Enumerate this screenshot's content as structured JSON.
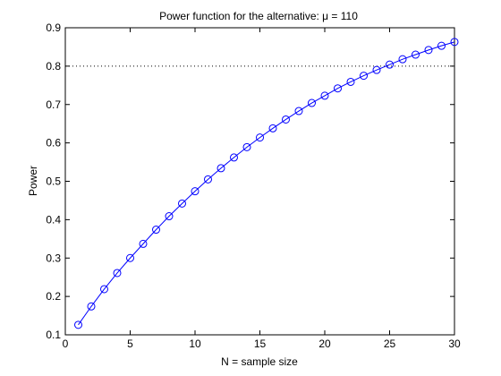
{
  "chart_data": {
    "type": "line",
    "title": "Power function for the alternative: μ = 110",
    "xlabel": "N = sample size",
    "ylabel": "Power",
    "xlim": [
      0,
      30
    ],
    "ylim": [
      0.1,
      0.9
    ],
    "xticks": [
      "0",
      "5",
      "10",
      "15",
      "20",
      "25",
      "30"
    ],
    "yticks": [
      "0.1",
      "0.2",
      "0.3",
      "0.4",
      "0.5",
      "0.6",
      "0.7",
      "0.8",
      "0.9"
    ],
    "grid": false,
    "reference_line": {
      "y": 0.8,
      "style": "dotted",
      "color": "#000000"
    },
    "series": [
      {
        "color": "#0000ff",
        "marker": "circle",
        "x": [
          1,
          2,
          3,
          4,
          5,
          6,
          7,
          8,
          9,
          10,
          11,
          12,
          13,
          14,
          15,
          16,
          17,
          18,
          19,
          20,
          21,
          22,
          23,
          24,
          25,
          26,
          27,
          28,
          29,
          30
        ],
        "values": [
          0.126,
          0.174,
          0.219,
          0.261,
          0.3,
          0.337,
          0.374,
          0.409,
          0.442,
          0.474,
          0.505,
          0.534,
          0.562,
          0.589,
          0.614,
          0.638,
          0.661,
          0.683,
          0.704,
          0.723,
          0.742,
          0.759,
          0.775,
          0.79,
          0.804,
          0.818,
          0.83,
          0.842,
          0.853,
          0.863
        ]
      }
    ]
  }
}
